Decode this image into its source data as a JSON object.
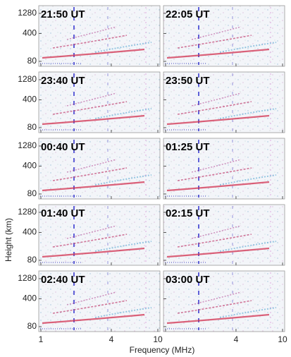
{
  "figure": {
    "y_label": "Height (km)",
    "x_label": "Frequency (MHz)",
    "yscale": "log",
    "ylim": [
      60,
      2000
    ],
    "yticks": [
      80,
      400,
      1280
    ],
    "xscale": "log",
    "xlim": [
      1,
      10
    ],
    "xticks": [
      1,
      4,
      10
    ],
    "panels": [
      {
        "title": "21:50 UT"
      },
      {
        "title": "22:05 UT"
      },
      {
        "title": "23:40 UT"
      },
      {
        "title": "23:50 UT"
      },
      {
        "title": "00:40 UT"
      },
      {
        "title": "01:25 UT"
      },
      {
        "title": "01:40 UT"
      },
      {
        "title": "02:15 UT"
      },
      {
        "title": "02:40 UT"
      },
      {
        "title": "03:00 UT"
      }
    ]
  }
}
